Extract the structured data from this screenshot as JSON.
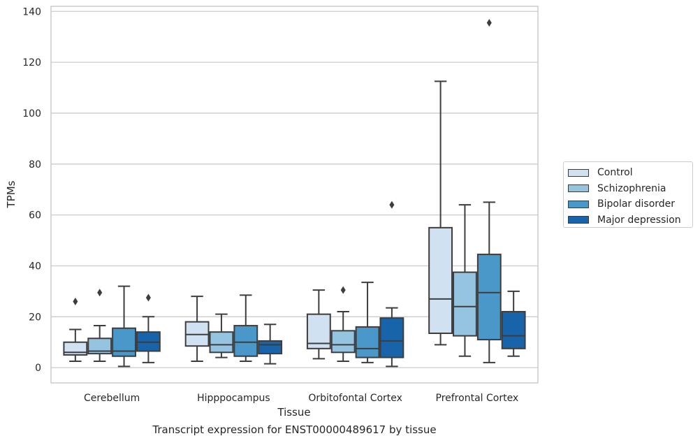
{
  "chart_data": {
    "type": "box",
    "xlabel": "Tissue",
    "ylabel": "TPMs",
    "caption": "Transcript expression for ENST00000489617 by tissue",
    "ylim": [
      -6,
      142
    ],
    "yticks": [
      0,
      20,
      40,
      60,
      80,
      100,
      120,
      140
    ],
    "grid": "horizontal",
    "legend_position": "right",
    "categories": [
      "Cerebellum",
      "Hipppocampus",
      "Orbitofontal Cortex",
      "Prefrontal Cortex"
    ],
    "series": [
      {
        "name": "Control",
        "color": "#d0e1f2",
        "boxes": [
          {
            "whisker_low": 2.5,
            "q1": 5,
            "median": 6,
            "q3": 10,
            "whisker_high": 15,
            "outliers": [
              26
            ]
          },
          {
            "whisker_low": 2.5,
            "q1": 8.5,
            "median": 13,
            "q3": 18,
            "whisker_high": 28,
            "outliers": []
          },
          {
            "whisker_low": 3.5,
            "q1": 7.5,
            "median": 9.5,
            "q3": 21,
            "whisker_high": 30.5,
            "outliers": []
          },
          {
            "whisker_low": 9,
            "q1": 13.5,
            "median": 27,
            "q3": 55,
            "whisker_high": 112.5,
            "outliers": []
          }
        ]
      },
      {
        "name": "Schizophrenia",
        "color": "#94c4df",
        "boxes": [
          {
            "whisker_low": 2.5,
            "q1": 5.5,
            "median": 6.5,
            "q3": 11.5,
            "whisker_high": 16.5,
            "outliers": [
              29.5
            ]
          },
          {
            "whisker_low": 4,
            "q1": 6,
            "median": 9,
            "q3": 14,
            "whisker_high": 21,
            "outliers": []
          },
          {
            "whisker_low": 2.5,
            "q1": 6,
            "median": 9,
            "q3": 14.5,
            "whisker_high": 22,
            "outliers": [
              30.5
            ]
          },
          {
            "whisker_low": 4.5,
            "q1": 12.5,
            "median": 24,
            "q3": 37.5,
            "whisker_high": 64,
            "outliers": []
          }
        ]
      },
      {
        "name": "Bipolar disorder",
        "color": "#4a98c9",
        "boxes": [
          {
            "whisker_low": 0.5,
            "q1": 4.5,
            "median": 6.5,
            "q3": 15.5,
            "whisker_high": 32,
            "outliers": []
          },
          {
            "whisker_low": 2.5,
            "q1": 4.5,
            "median": 10,
            "q3": 16.5,
            "whisker_high": 28.5,
            "outliers": []
          },
          {
            "whisker_low": 2,
            "q1": 4,
            "median": 7.5,
            "q3": 16,
            "whisker_high": 33.5,
            "outliers": []
          },
          {
            "whisker_low": 2,
            "q1": 11,
            "median": 29.5,
            "q3": 44.5,
            "whisker_high": 65,
            "outliers": [
              135.5
            ]
          }
        ]
      },
      {
        "name": "Major depression",
        "color": "#1764ab",
        "boxes": [
          {
            "whisker_low": 2,
            "q1": 6.5,
            "median": 10,
            "q3": 14,
            "whisker_high": 20,
            "outliers": [
              27.5
            ]
          },
          {
            "whisker_low": 1.5,
            "q1": 5.5,
            "median": 9,
            "q3": 10.5,
            "whisker_high": 17,
            "outliers": []
          },
          {
            "whisker_low": 0.5,
            "q1": 4,
            "median": 10.5,
            "q3": 19.5,
            "whisker_high": 23.5,
            "outliers": [
              64
            ]
          },
          {
            "whisker_low": 4.5,
            "q1": 7.5,
            "median": 12.5,
            "q3": 22,
            "whisker_high": 30,
            "outliers": []
          }
        ]
      }
    ]
  }
}
